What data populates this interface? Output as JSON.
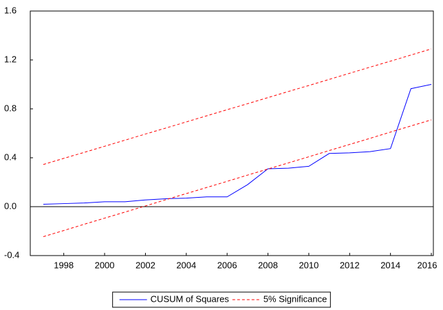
{
  "chart_data": {
    "type": "line",
    "x": [
      1997,
      1998,
      1999,
      2000,
      2001,
      2002,
      2003,
      2004,
      2005,
      2006,
      2007,
      2008,
      2009,
      2010,
      2011,
      2012,
      2013,
      2014,
      2015,
      2016
    ],
    "series": [
      {
        "name": "CUSUM of Squares",
        "color": "#0000ff",
        "dash": false,
        "values": [
          0.02,
          0.025,
          0.03,
          0.04,
          0.04,
          0.055,
          0.065,
          0.07,
          0.08,
          0.08,
          0.18,
          0.31,
          0.315,
          0.33,
          0.435,
          0.44,
          0.45,
          0.475,
          0.965,
          1.0
        ]
      },
      {
        "name": "5% Significance",
        "color": "#ff0000",
        "dash": true,
        "values": [
          0.345,
          0.395,
          0.444,
          0.494,
          0.544,
          0.594,
          0.643,
          0.693,
          0.743,
          0.793,
          0.842,
          0.892,
          0.942,
          0.991,
          1.041,
          1.091,
          1.141,
          1.19,
          1.24,
          1.29
        ]
      },
      {
        "name": "5% Significance",
        "color": "#ff0000",
        "dash": true,
        "values": [
          -0.245,
          -0.195,
          -0.144,
          -0.094,
          -0.044,
          0.006,
          0.057,
          0.107,
          0.157,
          0.207,
          0.258,
          0.308,
          0.358,
          0.408,
          0.459,
          0.509,
          0.559,
          0.61,
          0.66,
          0.71
        ]
      }
    ],
    "xlim": [
      1996.36,
      2016.1
    ],
    "xticks": [
      1998,
      2000,
      2002,
      2004,
      2006,
      2008,
      2010,
      2012,
      2014,
      2016
    ],
    "ylim": [
      -0.4,
      1.6
    ],
    "yticks": [
      -0.4,
      {
        "value": 0,
        "label": "0.0"
      },
      0.4,
      0.8,
      1.2,
      1.6
    ],
    "legend": "bottom"
  }
}
